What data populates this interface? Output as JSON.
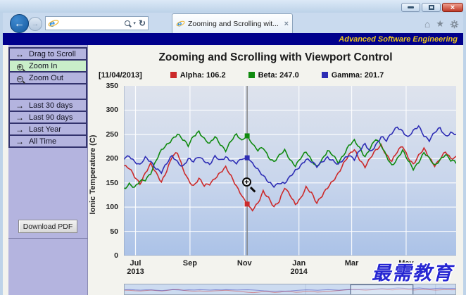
{
  "window": {
    "minimize_label": "minimize",
    "restore_label": "restore",
    "close_glyph": "×"
  },
  "browser": {
    "back_glyph": "←",
    "forward_glyph": "→",
    "address": {
      "value": "",
      "placeholder": ""
    },
    "address_icons": {
      "search": "search-icon",
      "dropdown": "▾",
      "refresh": "↻"
    },
    "tab": {
      "title": "Zooming and Scrolling wit...",
      "close_glyph": "×"
    },
    "toolbar_icons": {
      "home": "⌂",
      "favorites": "★"
    },
    "banner_text": "Advanced Software Engineering"
  },
  "sidebar": {
    "tools": [
      {
        "label": "Drag to Scroll",
        "icon": "drag-horizontal-icon",
        "glyph": "↔",
        "active": false
      },
      {
        "label": "Zoom In",
        "icon": "zoom-in-icon",
        "glyph": "+",
        "active": true
      },
      {
        "label": "Zoom Out",
        "icon": "zoom-out-icon",
        "glyph": "−",
        "active": false
      }
    ],
    "ranges": [
      {
        "label": "Last 30 days",
        "icon": "arrow-right-icon",
        "glyph": "→"
      },
      {
        "label": "Last 90 days",
        "icon": "arrow-right-icon",
        "glyph": "→"
      },
      {
        "label": "Last Year",
        "icon": "arrow-right-icon",
        "glyph": "→"
      },
      {
        "label": "All Time",
        "icon": "arrow-right-icon",
        "glyph": "→"
      }
    ],
    "download_button": "Download PDF"
  },
  "chart_data": {
    "type": "line",
    "title": "Zooming and Scrolling with Viewport Control",
    "ylabel": "Ionic Temperature (C)",
    "ylim": [
      0,
      350
    ],
    "y_ticks": [
      0,
      50,
      100,
      150,
      200,
      250,
      300,
      350
    ],
    "x_span_days": 372,
    "x_ticks": [
      {
        "day": 13,
        "label": "Jul",
        "sublabel": "2013"
      },
      {
        "day": 74,
        "label": "Sep",
        "sublabel": ""
      },
      {
        "day": 135,
        "label": "Nov",
        "sublabel": ""
      },
      {
        "day": 196,
        "label": "Jan",
        "sublabel": "2014"
      },
      {
        "day": 255,
        "label": "Mar",
        "sublabel": ""
      },
      {
        "day": 316,
        "label": "May",
        "sublabel": ""
      }
    ],
    "grid": true,
    "legend_position": "top",
    "cursor": {
      "day": 138,
      "date_label": "[11/04/2013]"
    },
    "series": [
      {
        "name": "Alpha",
        "color": "#cc2a2a",
        "cursor_value": 106.2,
        "points": [
          [
            0,
            185
          ],
          [
            6,
            178
          ],
          [
            12,
            162
          ],
          [
            18,
            150
          ],
          [
            24,
            172
          ],
          [
            30,
            188
          ],
          [
            36,
            168
          ],
          [
            42,
            152
          ],
          [
            48,
            178
          ],
          [
            54,
            205
          ],
          [
            60,
            210
          ],
          [
            66,
            178
          ],
          [
            72,
            158
          ],
          [
            78,
            145
          ],
          [
            84,
            158
          ],
          [
            90,
            142
          ],
          [
            96,
            148
          ],
          [
            102,
            162
          ],
          [
            108,
            172
          ],
          [
            114,
            180
          ],
          [
            120,
            162
          ],
          [
            126,
            145
          ],
          [
            132,
            125
          ],
          [
            138,
            106.2
          ],
          [
            144,
            92
          ],
          [
            150,
            108
          ],
          [
            156,
            135
          ],
          [
            162,
            120
          ],
          [
            168,
            98
          ],
          [
            174,
            110
          ],
          [
            180,
            142
          ],
          [
            186,
            128
          ],
          [
            192,
            105
          ],
          [
            198,
            115
          ],
          [
            204,
            140
          ],
          [
            210,
            132
          ],
          [
            216,
            110
          ],
          [
            222,
            122
          ],
          [
            228,
            138
          ],
          [
            234,
            155
          ],
          [
            240,
            172
          ],
          [
            246,
            190
          ],
          [
            252,
            205
          ],
          [
            258,
            218
          ],
          [
            264,
            200
          ],
          [
            270,
            185
          ],
          [
            276,
            200
          ],
          [
            282,
            215
          ],
          [
            288,
            228
          ],
          [
            294,
            210
          ],
          [
            300,
            195
          ],
          [
            306,
            212
          ],
          [
            312,
            225
          ],
          [
            318,
            205
          ],
          [
            324,
            190
          ],
          [
            330,
            205
          ],
          [
            336,
            218
          ],
          [
            342,
            202
          ],
          [
            348,
            188
          ],
          [
            354,
            200
          ],
          [
            360,
            212
          ],
          [
            366,
            198
          ],
          [
            372,
            205
          ]
        ]
      },
      {
        "name": "Beta",
        "color": "#0f8a0f",
        "cursor_value": 247.0,
        "points": [
          [
            0,
            140
          ],
          [
            6,
            148
          ],
          [
            12,
            138
          ],
          [
            18,
            152
          ],
          [
            24,
            158
          ],
          [
            30,
            172
          ],
          [
            36,
            195
          ],
          [
            42,
            215
          ],
          [
            48,
            228
          ],
          [
            54,
            242
          ],
          [
            60,
            252
          ],
          [
            66,
            238
          ],
          [
            72,
            225
          ],
          [
            78,
            248
          ],
          [
            84,
            258
          ],
          [
            90,
            240
          ],
          [
            96,
            228
          ],
          [
            102,
            245
          ],
          [
            108,
            232
          ],
          [
            114,
            218
          ],
          [
            120,
            235
          ],
          [
            126,
            248
          ],
          [
            132,
            238
          ],
          [
            138,
            247
          ],
          [
            144,
            230
          ],
          [
            150,
            215
          ],
          [
            156,
            222
          ],
          [
            162,
            205
          ],
          [
            168,
            195
          ],
          [
            174,
            205
          ],
          [
            180,
            215
          ],
          [
            186,
            198
          ],
          [
            192,
            188
          ],
          [
            198,
            202
          ],
          [
            204,
            212
          ],
          [
            210,
            195
          ],
          [
            216,
            185
          ],
          [
            222,
            200
          ],
          [
            228,
            215
          ],
          [
            234,
            205
          ],
          [
            240,
            192
          ],
          [
            246,
            210
          ],
          [
            252,
            228
          ],
          [
            258,
            235
          ],
          [
            264,
            220
          ],
          [
            270,
            205
          ],
          [
            276,
            225
          ],
          [
            282,
            240
          ],
          [
            288,
            225
          ],
          [
            294,
            205
          ],
          [
            300,
            188
          ],
          [
            306,
            200
          ],
          [
            312,
            215
          ],
          [
            318,
            195
          ],
          [
            324,
            180
          ],
          [
            330,
            195
          ],
          [
            336,
            212
          ],
          [
            342,
            198
          ],
          [
            348,
            185
          ],
          [
            354,
            200
          ],
          [
            360,
            210
          ],
          [
            366,
            195
          ],
          [
            372,
            190
          ]
        ]
      },
      {
        "name": "Gamma",
        "color": "#2d2db4",
        "cursor_value": 201.7,
        "points": [
          [
            0,
            200
          ],
          [
            6,
            208
          ],
          [
            12,
            195
          ],
          [
            18,
            185
          ],
          [
            24,
            200
          ],
          [
            30,
            195
          ],
          [
            36,
            182
          ],
          [
            42,
            172
          ],
          [
            48,
            188
          ],
          [
            54,
            205
          ],
          [
            60,
            195
          ],
          [
            66,
            185
          ],
          [
            72,
            198
          ],
          [
            78,
            192
          ],
          [
            84,
            205
          ],
          [
            90,
            198
          ],
          [
            96,
            188
          ],
          [
            102,
            202
          ],
          [
            108,
            195
          ],
          [
            114,
            205
          ],
          [
            120,
            198
          ],
          [
            126,
            190
          ],
          [
            132,
            198
          ],
          [
            138,
            201.7
          ],
          [
            144,
            192
          ],
          [
            150,
            178
          ],
          [
            156,
            162
          ],
          [
            162,
            150
          ],
          [
            168,
            145
          ],
          [
            174,
            152
          ],
          [
            180,
            148
          ],
          [
            186,
            160
          ],
          [
            192,
            175
          ],
          [
            198,
            188
          ],
          [
            204,
            200
          ],
          [
            210,
            192
          ],
          [
            216,
            182
          ],
          [
            222,
            195
          ],
          [
            228,
            205
          ],
          [
            234,
            195
          ],
          [
            240,
            185
          ],
          [
            246,
            198
          ],
          [
            252,
            210
          ],
          [
            258,
            200
          ],
          [
            264,
            215
          ],
          [
            270,
            228
          ],
          [
            276,
            215
          ],
          [
            282,
            230
          ],
          [
            288,
            245
          ],
          [
            294,
            235
          ],
          [
            300,
            252
          ],
          [
            306,
            268
          ],
          [
            312,
            258
          ],
          [
            318,
            242
          ],
          [
            324,
            255
          ],
          [
            330,
            268
          ],
          [
            336,
            250
          ],
          [
            342,
            238
          ],
          [
            348,
            252
          ],
          [
            354,
            262
          ],
          [
            360,
            248
          ],
          [
            366,
            255
          ],
          [
            372,
            250
          ]
        ]
      }
    ],
    "navigator": {
      "viewport_start_frac": 0.68,
      "viewport_end_frac": 0.868
    }
  },
  "watermark": "最需教育"
}
